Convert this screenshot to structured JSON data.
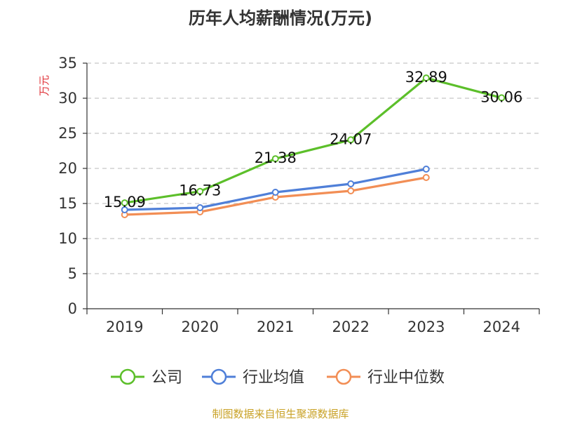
{
  "chart_data": {
    "type": "line",
    "title": "历年人均薪酬情况(万元)",
    "ylabel": "万元",
    "xlabel": "",
    "categories": [
      "2019",
      "2020",
      "2021",
      "2022",
      "2023",
      "2024"
    ],
    "ylim": [
      0,
      35
    ],
    "yticks": [
      0,
      5,
      10,
      15,
      20,
      25,
      30,
      35
    ],
    "grid": true,
    "legend_position": "bottom",
    "series": [
      {
        "name": "公司",
        "color": "#5cbf2a",
        "values": [
          15.09,
          16.73,
          21.38,
          24.07,
          32.89,
          30.06
        ],
        "labels": [
          "15.09",
          "16.73",
          "21.38",
          "24.07",
          "32.89",
          "30.06"
        ]
      },
      {
        "name": "行业均值",
        "color": "#4f7fd8",
        "values": [
          14.1,
          14.4,
          16.6,
          17.8,
          19.9,
          null
        ]
      },
      {
        "name": "行业中位数",
        "color": "#f28e55",
        "values": [
          13.4,
          13.8,
          15.9,
          16.8,
          18.7,
          null
        ]
      }
    ]
  },
  "colors": {
    "ylabel": "#e0343a",
    "source": "#c9a227"
  },
  "source": "制图数据来自恒生聚源数据库"
}
